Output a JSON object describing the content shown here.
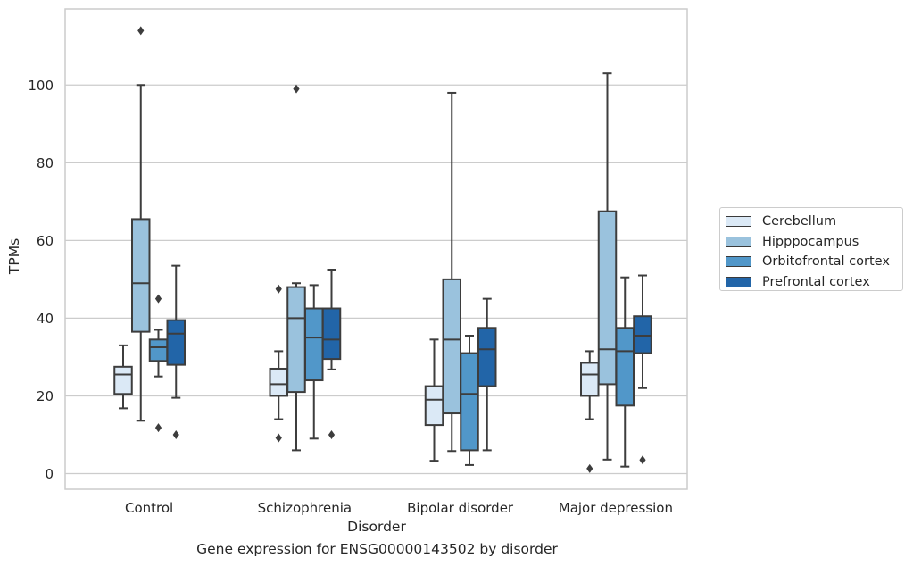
{
  "chart_data": {
    "type": "box",
    "caption": "Gene expression for ENSG00000143502 by disorder",
    "xlabel": "Disorder",
    "ylabel": "TPMs",
    "categories": [
      "Control",
      "Schizophrenia",
      "Bipolar disorder",
      "Major depression"
    ],
    "ylim": [
      -4,
      119
    ],
    "yticks": [
      0,
      20,
      40,
      60,
      80,
      100
    ],
    "grid": true,
    "legend_position": "right",
    "series": [
      {
        "name": "Cerebellum",
        "color": "#dbe9f6",
        "boxes": [
          {
            "whisker_low": 16.8,
            "q1": 20.5,
            "median": 25.5,
            "q3": 27.5,
            "whisker_high": 33,
            "outliers": []
          },
          {
            "whisker_low": 14,
            "q1": 20,
            "median": 23,
            "q3": 27,
            "whisker_high": 31.5,
            "outliers": [
              47.5,
              9.2
            ]
          },
          {
            "whisker_low": 3.3,
            "q1": 12.5,
            "median": 19,
            "q3": 22.5,
            "whisker_high": 34.5,
            "outliers": []
          },
          {
            "whisker_low": 14,
            "q1": 20,
            "median": 25.5,
            "q3": 28.5,
            "whisker_high": 31.5,
            "outliers": [
              1.3
            ]
          }
        ]
      },
      {
        "name": "Hipppocampus",
        "color": "#9ac2dd",
        "boxes": [
          {
            "whisker_low": 13.6,
            "q1": 36.5,
            "median": 49,
            "q3": 65.5,
            "whisker_high": 100,
            "outliers": [
              114
            ]
          },
          {
            "whisker_low": 6,
            "q1": 21,
            "median": 40,
            "q3": 48,
            "whisker_high": 49,
            "outliers": [
              99
            ]
          },
          {
            "whisker_low": 5.8,
            "q1": 15.5,
            "median": 34.5,
            "q3": 50,
            "whisker_high": 98,
            "outliers": []
          },
          {
            "whisker_low": 3.6,
            "q1": 23,
            "median": 32,
            "q3": 67.5,
            "whisker_high": 103,
            "outliers": []
          }
        ]
      },
      {
        "name": "Orbitofrontal cortex",
        "color": "#5197c9",
        "boxes": [
          {
            "whisker_low": 25,
            "q1": 29,
            "median": 32.5,
            "q3": 34.5,
            "whisker_high": 37,
            "outliers": [
              45,
              11.8
            ]
          },
          {
            "whisker_low": 9,
            "q1": 24,
            "median": 35,
            "q3": 42.5,
            "whisker_high": 48.5,
            "outliers": []
          },
          {
            "whisker_low": 2.2,
            "q1": 6,
            "median": 20.5,
            "q3": 31,
            "whisker_high": 35.5,
            "outliers": []
          },
          {
            "whisker_low": 1.8,
            "q1": 17.5,
            "median": 31.5,
            "q3": 37.5,
            "whisker_high": 50.5,
            "outliers": []
          }
        ]
      },
      {
        "name": "Prefrontal cortex",
        "color": "#2265a8",
        "boxes": [
          {
            "whisker_low": 19.5,
            "q1": 28,
            "median": 36,
            "q3": 39.5,
            "whisker_high": 53.5,
            "outliers": [
              10
            ]
          },
          {
            "whisker_low": 26.8,
            "q1": 29.5,
            "median": 34.5,
            "q3": 42.5,
            "whisker_high": 52.5,
            "outliers": [
              10
            ]
          },
          {
            "whisker_low": 6,
            "q1": 22.5,
            "median": 32,
            "q3": 37.5,
            "whisker_high": 45,
            "outliers": []
          },
          {
            "whisker_low": 22,
            "q1": 31,
            "median": 35.5,
            "q3": 40.5,
            "whisker_high": 51,
            "outliers": [
              3.5
            ]
          }
        ]
      }
    ]
  }
}
